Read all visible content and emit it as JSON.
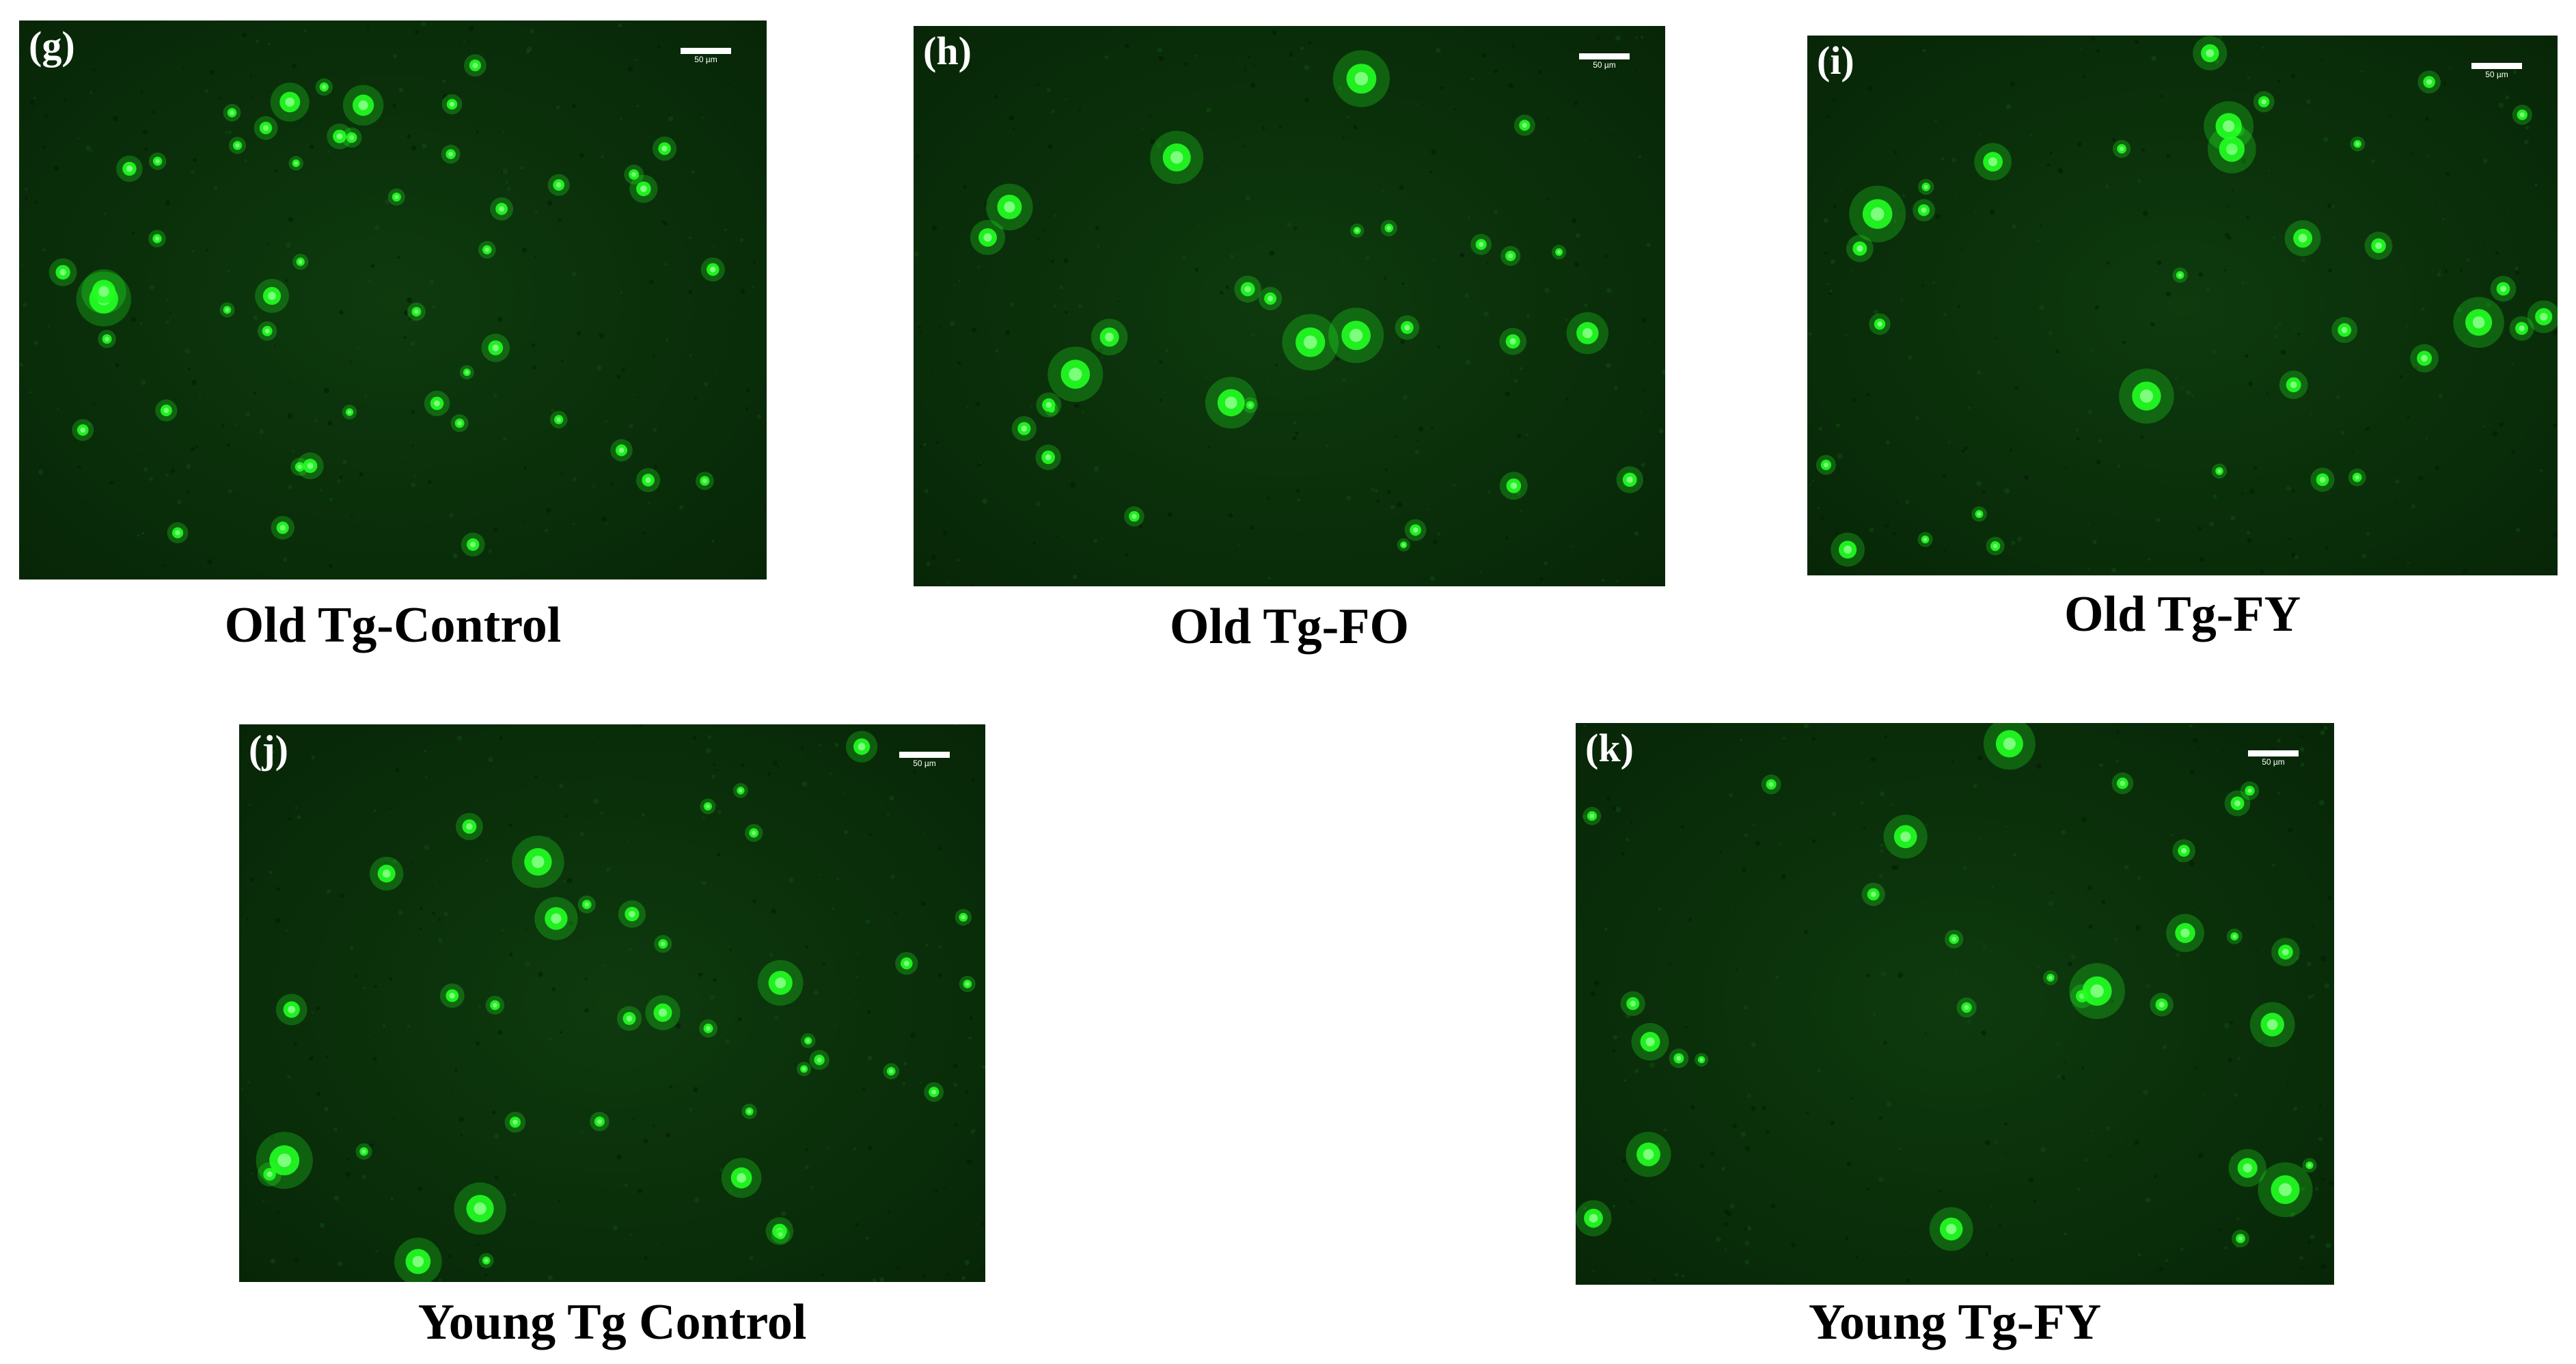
{
  "panels": [
    {
      "letter": "(g)",
      "caption": "Old Tg-Control",
      "scale_label": "50 µm"
    },
    {
      "letter": "(h)",
      "caption": "Old Tg-FO",
      "scale_label": "50 µm"
    },
    {
      "letter": "(i)",
      "caption": "Old Tg-FY",
      "scale_label": "50 µm"
    },
    {
      "letter": "(j)",
      "caption": "Young Tg Control",
      "scale_label": "50 µm"
    },
    {
      "letter": "(k)",
      "caption": "Young Tg-FY",
      "scale_label": "50 µm"
    }
  ],
  "colors": {
    "background": "#0a2f0a",
    "plaque": "#22ff22",
    "plaque_core": "#7dff7d"
  }
}
